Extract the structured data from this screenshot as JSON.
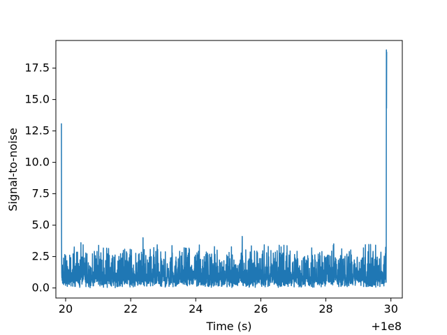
{
  "chart_data": {
    "type": "line",
    "title": "",
    "xlabel": "Time (s)",
    "ylabel": "Signal-to-noise",
    "x_offset_label": "+1e8",
    "xlim": [
      19.7,
      30.35
    ],
    "ylim": [
      -0.8,
      19.7
    ],
    "xticks": [
      20,
      22,
      24,
      26,
      28,
      30
    ],
    "xtick_labels": [
      "20",
      "22",
      "24",
      "26",
      "28",
      "30"
    ],
    "yticks": [
      0.0,
      2.5,
      5.0,
      7.5,
      10.0,
      12.5,
      15.0,
      17.5
    ],
    "ytick_labels": [
      "0.0",
      "2.5",
      "5.0",
      "7.5",
      "10.0",
      "12.5",
      "15.0",
      "17.5"
    ],
    "grid": false,
    "legend": "none",
    "series_color": "#1f77b4",
    "x_range": [
      19.87,
      29.87
    ],
    "noise_band": [
      0.0,
      4.1
    ],
    "spikes": [
      {
        "x": 19.87,
        "y": 13.1
      },
      {
        "x": 20.47,
        "y": 3.6
      },
      {
        "x": 22.38,
        "y": 4.0
      },
      {
        "x": 25.43,
        "y": 4.1
      },
      {
        "x": 28.23,
        "y": 3.4
      },
      {
        "x": 29.86,
        "y": 18.95
      }
    ]
  }
}
